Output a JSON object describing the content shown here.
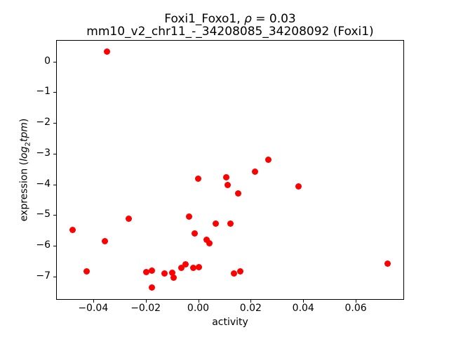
{
  "title_parts": {
    "line1_prefix": "Foxi1_Foxo1, ",
    "line1_rho": "ρ",
    "line1_suffix": " = 0.03",
    "line2": "mm10_v2_chr11_-_34208085_34208092 (Foxi1)"
  },
  "ylabel_parts": {
    "prefix": "expression (",
    "word1": "log",
    "sub": "2",
    "word2": "tpm",
    "suffix": ")"
  },
  "chart_data": {
    "type": "scatter",
    "title": "Foxi1_Foxo1, ρ = 0.03",
    "subtitle": "mm10_v2_chr11_-_34208085_34208092 (Foxi1)",
    "xlabel": "activity",
    "ylabel": "expression (log2tpm)",
    "xlim": [
      -0.0541,
      0.0784
    ],
    "ylim": [
      -7.76,
      0.7
    ],
    "grid": false,
    "legend": "none",
    "marker_color": "#ff0000",
    "xticks": {
      "values": [
        -0.04,
        -0.02,
        0.0,
        0.02,
        0.04,
        0.06
      ],
      "labels": [
        "−0.04",
        "−0.02",
        "0.00",
        "0.02",
        "0.04",
        "0.06"
      ]
    },
    "yticks": {
      "values": [
        0,
        -1,
        -2,
        -3,
        -4,
        -5,
        -6,
        -7
      ],
      "labels": [
        "0",
        "−1",
        "−2",
        "−3",
        "−4",
        "−5",
        "−6",
        "−7"
      ]
    },
    "points": [
      [
        -0.0346,
        0.33
      ],
      [
        -0.0477,
        -5.48
      ],
      [
        -0.0425,
        -6.83
      ],
      [
        -0.0356,
        -5.84
      ],
      [
        -0.0265,
        -5.12
      ],
      [
        -0.0198,
        -6.85
      ],
      [
        -0.0177,
        -6.81
      ],
      [
        -0.0177,
        -7.35
      ],
      [
        -0.0129,
        -6.9
      ],
      [
        -0.0098,
        -6.87
      ],
      [
        -0.0094,
        -7.04
      ],
      [
        -0.0065,
        -6.71
      ],
      [
        -0.0049,
        -6.61
      ],
      [
        -0.0018,
        -6.72
      ],
      [
        0.0003,
        -6.7
      ],
      [
        0.0001,
        -3.82
      ],
      [
        -0.0036,
        -5.06
      ],
      [
        -0.0014,
        -5.61
      ],
      [
        0.0031,
        -5.81
      ],
      [
        0.0043,
        -5.91
      ],
      [
        0.0068,
        -5.27
      ],
      [
        0.0124,
        -5.29
      ],
      [
        0.0106,
        -3.78
      ],
      [
        0.0112,
        -4.03
      ],
      [
        0.0153,
        -4.3
      ],
      [
        0.0215,
        -3.59
      ],
      [
        0.0268,
        -3.2
      ],
      [
        0.0381,
        -4.07
      ],
      [
        0.0136,
        -6.9
      ],
      [
        0.016,
        -6.83
      ],
      [
        0.0721,
        -6.59
      ]
    ]
  }
}
